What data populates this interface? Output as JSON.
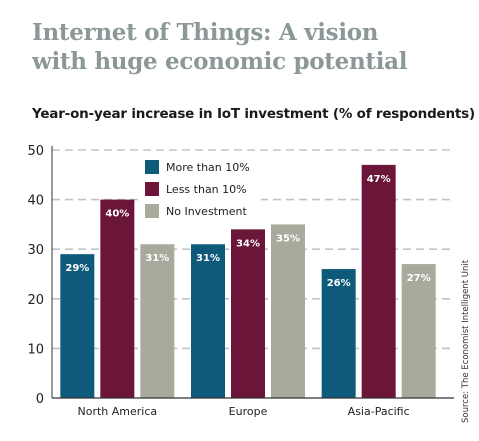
{
  "chart_data": {
    "type": "bar",
    "title": "Internet of Things: A vision with huge economic potential",
    "subtitle": "Year-on-year increase in IoT investment (% of respondents)",
    "source": "Source: The Economist Intelligent Unit",
    "categories": [
      "North America",
      "Europe",
      "Asia-Pacific"
    ],
    "series": [
      {
        "name": "More than 10%",
        "values": [
          29,
          31,
          26
        ],
        "labels": [
          "29%",
          "31%",
          "26%"
        ]
      },
      {
        "name": "Less than 10%",
        "values": [
          40,
          34,
          47
        ],
        "labels": [
          "40%",
          "34%",
          "47%"
        ]
      },
      {
        "name": "No Investment",
        "values": [
          31,
          35,
          27
        ],
        "labels": [
          "31%",
          "35%",
          "27%"
        ]
      }
    ],
    "ylim": [
      0,
      50
    ],
    "yticks": [
      0,
      10,
      20,
      30,
      40,
      50
    ],
    "grid": true,
    "legend_position": "top-left",
    "colors": [
      "#0e5a7a",
      "#6b1538",
      "#a8aa9c"
    ]
  }
}
